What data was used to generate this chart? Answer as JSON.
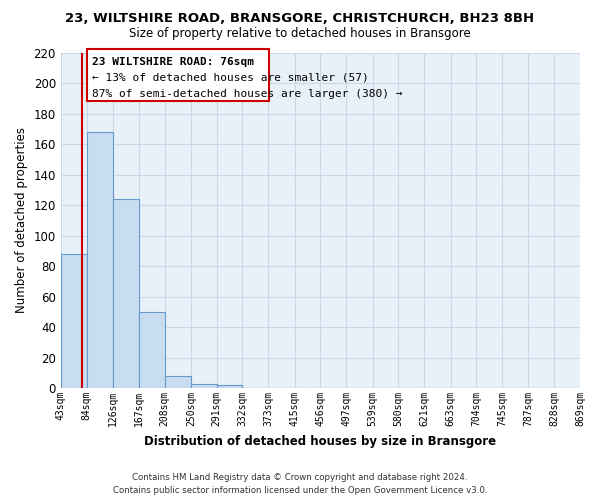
{
  "title": "23, WILTSHIRE ROAD, BRANSGORE, CHRISTCHURCH, BH23 8BH",
  "subtitle": "Size of property relative to detached houses in Bransgore",
  "xlabel": "Distribution of detached houses by size in Bransgore",
  "ylabel": "Number of detached properties",
  "bin_labels": [
    "43sqm",
    "84sqm",
    "126sqm",
    "167sqm",
    "208sqm",
    "250sqm",
    "291sqm",
    "332sqm",
    "373sqm",
    "415sqm",
    "456sqm",
    "497sqm",
    "539sqm",
    "580sqm",
    "621sqm",
    "663sqm",
    "704sqm",
    "745sqm",
    "787sqm",
    "828sqm",
    "869sqm"
  ],
  "bar_values": [
    88,
    168,
    124,
    50,
    8,
    3,
    2,
    0,
    0,
    0,
    0,
    0,
    0,
    0,
    0,
    0,
    0,
    0,
    0,
    0
  ],
  "bar_fill_color": "#c8ddf0",
  "bar_edge_color": "#6699cc",
  "property_line_color": "#cc0000",
  "property_line_x": 76,
  "bin_edges": [
    43,
    84,
    126,
    167,
    208,
    250,
    291,
    332,
    373,
    415,
    456,
    497,
    539,
    580,
    621,
    663,
    704,
    745,
    787,
    828,
    869
  ],
  "annotation_title": "23 WILTSHIRE ROAD: 76sqm",
  "annotation_line1": "← 13% of detached houses are smaller (57)",
  "annotation_line2": "87% of semi-detached houses are larger (380) →",
  "annotation_border_color": "#cc0000",
  "ylim": [
    0,
    220
  ],
  "yticks": [
    0,
    20,
    40,
    60,
    80,
    100,
    120,
    140,
    160,
    180,
    200,
    220
  ],
  "footer_line1": "Contains HM Land Registry data © Crown copyright and database right 2024.",
  "footer_line2": "Contains public sector information licensed under the Open Government Licence v3.0.",
  "grid_color": "#c8d8e8",
  "background_color": "#e8f0f8"
}
